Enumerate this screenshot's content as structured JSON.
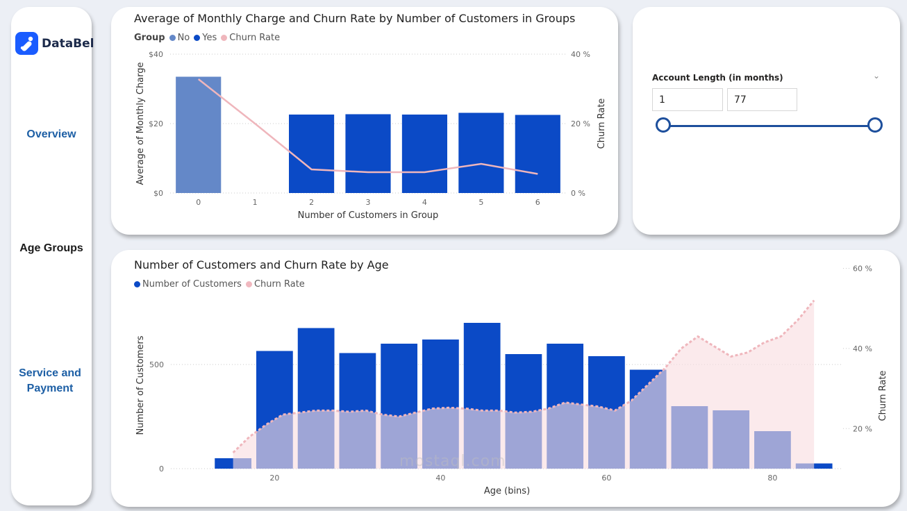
{
  "sidebar": {
    "logo_text": "DataBel",
    "nav": [
      {
        "label": "Overview"
      },
      {
        "label": "Age Groups"
      },
      {
        "label": "Service and Payment"
      }
    ]
  },
  "top_chart": {
    "title": "Average of Monthly Charge and Churn Rate by Number of Customers in Groups",
    "legend_title": "Group",
    "legend_items": [
      "No",
      "Yes",
      "Churn Rate"
    ],
    "colors": {
      "no": "#6488c8",
      "yes": "#0b4ac6",
      "churn": "#efb6bc"
    }
  },
  "slicer": {
    "title": "Account Length (in months)",
    "min_value": "1",
    "max_value": "77",
    "range": [
      1,
      77
    ]
  },
  "bottom_chart": {
    "title": "Number of Customers and Churn Rate by Age",
    "legend_items": [
      "Number of Customers",
      "Churn Rate"
    ],
    "colors": {
      "bars": "#0b4ac6",
      "area": "#f8dde0",
      "line": "#efb6bc"
    }
  },
  "watermark": "mostaql.com",
  "chart_data": [
    {
      "type": "bar+line",
      "title": "Average of Monthly Charge and Churn Rate by Number of Customers in Groups",
      "xlabel": "Number of Customers in Group",
      "ylabel": "Average of Monthly Charge",
      "y2label": "Churn Rate",
      "categories": [
        "0",
        "1",
        "2",
        "3",
        "4",
        "5",
        "6"
      ],
      "ylim": [
        0,
        40
      ],
      "y_ticks": [
        "$0",
        "$20",
        "$40"
      ],
      "y2lim": [
        0,
        40
      ],
      "y2_ticks": [
        "0 %",
        "20 %",
        "40 %"
      ],
      "series": [
        {
          "name": "No",
          "kind": "bar",
          "values": [
            33.5,
            null,
            null,
            null,
            null,
            null,
            null
          ]
        },
        {
          "name": "Yes",
          "kind": "bar",
          "values": [
            null,
            null,
            22.6,
            22.7,
            22.6,
            23.1,
            22.5
          ]
        },
        {
          "name": "Churn Rate",
          "kind": "line",
          "axis": "y2",
          "values": [
            32.8,
            20.0,
            6.8,
            6.0,
            6.0,
            8.4,
            5.5
          ]
        }
      ]
    },
    {
      "type": "bar+area",
      "title": "Number of Customers and Churn Rate by Age",
      "xlabel": "Age (bins)",
      "ylabel": "Number of Customers",
      "y2label": "Churn Rate",
      "x_ticks": [
        20,
        40,
        60,
        80
      ],
      "y_ticks": [
        0,
        500
      ],
      "y2_ticks": [
        "20 %",
        "40 %",
        "60 %"
      ],
      "xlim": [
        7.5,
        88.5
      ],
      "ylim": [
        0,
        1000
      ],
      "y2lim": [
        10,
        62
      ],
      "series": [
        {
          "name": "Number of Customers",
          "kind": "bar",
          "x": [
            15,
            20,
            25,
            30,
            35,
            40,
            45,
            50,
            55,
            60,
            65,
            70,
            75,
            80,
            85
          ],
          "values": [
            50,
            565,
            675,
            555,
            600,
            620,
            700,
            550,
            600,
            540,
            475,
            300,
            280,
            180,
            25
          ]
        },
        {
          "name": "Churn Rate",
          "kind": "area",
          "axis": "y2",
          "x": [
            15,
            17,
            19,
            21,
            23,
            25,
            27,
            29,
            31,
            33,
            35,
            37,
            39,
            41,
            43,
            45,
            47,
            49,
            51,
            53,
            55,
            57,
            59,
            61,
            63,
            65,
            67,
            69,
            71,
            73,
            75,
            77,
            79,
            81,
            83,
            85
          ],
          "values": [
            14,
            18,
            21,
            23.5,
            24,
            24.5,
            24.5,
            24.2,
            24.5,
            23.5,
            23,
            24,
            25,
            25.2,
            25,
            24.5,
            24.5,
            24,
            24.2,
            25,
            26.5,
            26,
            25.5,
            24.5,
            27,
            31,
            35,
            40,
            43,
            40.5,
            38,
            39,
            41.5,
            43,
            47,
            52
          ]
        }
      ]
    }
  ]
}
